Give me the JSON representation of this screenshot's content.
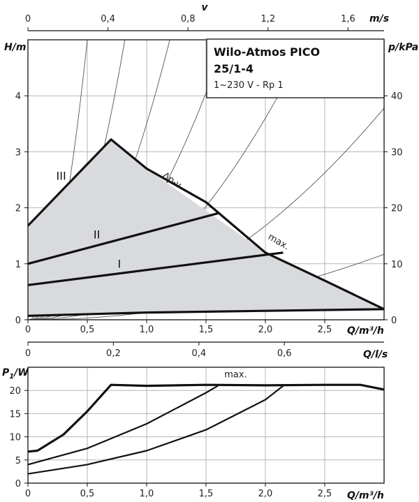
{
  "title_box": {
    "line1": "Wilo-Atmos PICO",
    "line2": "25/1-4",
    "line3": "1~230 V - Rp 1"
  },
  "chart_data": [
    {
      "type": "line",
      "name": "head_curve",
      "axes": {
        "x": {
          "label": "Q/m³/h",
          "range": [
            0,
            3.0
          ],
          "ticks": [
            "0",
            "0,5",
            "1,0",
            "1,5",
            "2,0",
            "2,5"
          ],
          "tick_values": [
            0,
            0.5,
            1.0,
            1.5,
            2.0,
            2.5
          ]
        },
        "y": {
          "label": "H/m",
          "range": [
            0,
            5
          ],
          "ticks": [
            "0",
            "1",
            "2",
            "3",
            "4"
          ],
          "tick_values": [
            0,
            1,
            2,
            3,
            4
          ]
        },
        "y2": {
          "label": "p/kPa",
          "range": [
            0,
            50
          ],
          "ticks": [
            "0",
            "10",
            "20",
            "30",
            "40"
          ],
          "tick_values": [
            0,
            10,
            20,
            30,
            40
          ]
        },
        "x_top": {
          "label": "v",
          "unit_label": "m/s",
          "range": [
            0,
            1.78
          ],
          "ticks": [
            "0",
            "0,4",
            "0,8",
            "1,2",
            "1,6"
          ],
          "tick_values": [
            0,
            0.4,
            0.8,
            1.2,
            1.6
          ]
        },
        "x_q_ls": {
          "label": "Q/l/s",
          "range": [
            0,
            0.8333
          ],
          "ticks": [
            "0",
            "0,2",
            "0,4",
            "0,6"
          ],
          "tick_values": [
            0,
            0.2,
            0.4,
            0.6
          ]
        }
      },
      "envelope": {
        "x": [
          0,
          0.7,
          1.0,
          2.0,
          3.0,
          3.0,
          1.0,
          0
        ],
        "y": [
          1.68,
          3.22,
          2.7,
          1.2,
          0.19,
          0.17,
          0.13,
          0.07
        ]
      },
      "series": [
        {
          "name": "III",
          "x": [
            0,
            0.7,
            1.0,
            1.5,
            2.0,
            2.5,
            3.0
          ],
          "y": [
            1.68,
            3.22,
            2.7,
            2.1,
            1.2,
            0.7,
            0.19
          ]
        },
        {
          "name": "II",
          "x": [
            0,
            1.6
          ],
          "y": [
            1.0,
            1.9
          ]
        },
        {
          "name": "I",
          "x": [
            0,
            2.15
          ],
          "y": [
            0.62,
            1.2
          ]
        },
        {
          "name": "min",
          "x": [
            0,
            1.0,
            2.0,
            3.0
          ],
          "y": [
            0.07,
            0.13,
            0.16,
            0.19
          ]
        }
      ],
      "system_curves_k": [
        20,
        7.5,
        3.5,
        1.8,
        0.9,
        0.42,
        0.13
      ],
      "annotations": [
        {
          "text": "III",
          "x": 0.28,
          "y": 2.5
        },
        {
          "text": "II",
          "x": 0.58,
          "y": 1.45
        },
        {
          "text": "I",
          "x": 0.77,
          "y": 0.93
        },
        {
          "text": "Δp-v",
          "x": 1.2,
          "y": 2.45
        },
        {
          "text": "max.",
          "x": 2.1,
          "y": 1.35
        }
      ],
      "grid": true
    },
    {
      "type": "line",
      "name": "power_curve",
      "axes": {
        "x": {
          "label": "Q/m³/h",
          "range": [
            0,
            3.0
          ],
          "ticks": [
            "0",
            "0,5",
            "1,0",
            "1,5",
            "2,0",
            "2,5"
          ],
          "tick_values": [
            0,
            0.5,
            1.0,
            1.5,
            2.0,
            2.5
          ]
        },
        "y": {
          "label_main": "P",
          "label_sub": "1",
          "label_unit": "/W",
          "range": [
            0,
            25
          ],
          "ticks": [
            "0",
            "5",
            "10",
            "15",
            "20"
          ],
          "tick_values": [
            0,
            5,
            10,
            15,
            20
          ]
        }
      },
      "series": [
        {
          "name": "max",
          "x": [
            0,
            0.08,
            0.3,
            0.5,
            0.7,
            1.0,
            1.5,
            2.0,
            2.5,
            2.8,
            3.0
          ],
          "y": [
            6.8,
            7.0,
            10.5,
            15.5,
            21.2,
            21.0,
            21.2,
            21.1,
            21.2,
            21.2,
            20.2
          ]
        },
        {
          "name": "II",
          "x": [
            0,
            0.5,
            1.0,
            1.5,
            1.6
          ],
          "y": [
            4.0,
            7.5,
            12.8,
            19.5,
            21.0
          ]
        },
        {
          "name": "I",
          "x": [
            0,
            0.5,
            1.0,
            1.5,
            2.0,
            2.15
          ],
          "y": [
            2.0,
            4.0,
            7.0,
            11.5,
            18.0,
            21.0
          ]
        }
      ],
      "annotations": [
        {
          "text": "max.",
          "x": 1.75,
          "y": 22.8
        }
      ],
      "grid": true
    }
  ]
}
